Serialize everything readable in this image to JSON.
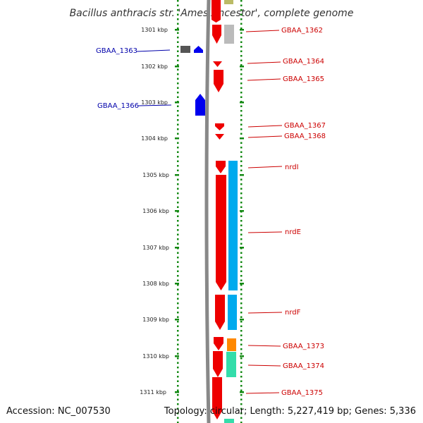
{
  "title": "Bacillus anthracis str. 'Ames Ancestor', complete genome",
  "footer": {
    "accession": "Accession: NC_007530",
    "topology": "Topology: circular; Length: 5,227,419 bp; Genes: 5,336"
  },
  "colors": {
    "forward_gene": "#ee0000",
    "reverse_gene": "#0000ee",
    "tick": "#118811",
    "backbone": "#888888",
    "nrd_operon": "#00aaee",
    "gene_1362_track2": "#bbbbbb",
    "gene_1373_track2": "#ff8800",
    "gene_1374_track2": "#33ddaa",
    "gene_1375_track2": "#33ddaa",
    "top_olive": "#bbbb66",
    "gene_1363_grey": "#555555",
    "fwd_label": "#cc0000",
    "rev_label": "#0000aa"
  },
  "position_scale": {
    "kbp_labels": [
      "1301 kbp",
      "1302 kbp",
      "1303 kbp",
      "1304 kbp",
      "1305 kbp",
      "1306 kbp",
      "1307 kbp",
      "1308 kbp",
      "1309 kbp",
      "1310 kbp",
      "1311 kbp"
    ]
  },
  "genes": {
    "forward_labels": [
      "GBAA_1362",
      "GBAA_1364",
      "GBAA_1365",
      "GBAA_1367",
      "GBAA_1368",
      "nrdI",
      "nrdE",
      "nrdF",
      "GBAA_1373",
      "GBAA_1374",
      "GBAA_1375"
    ],
    "reverse_labels": [
      "GBAA_1363",
      "GBAA_1366"
    ]
  }
}
